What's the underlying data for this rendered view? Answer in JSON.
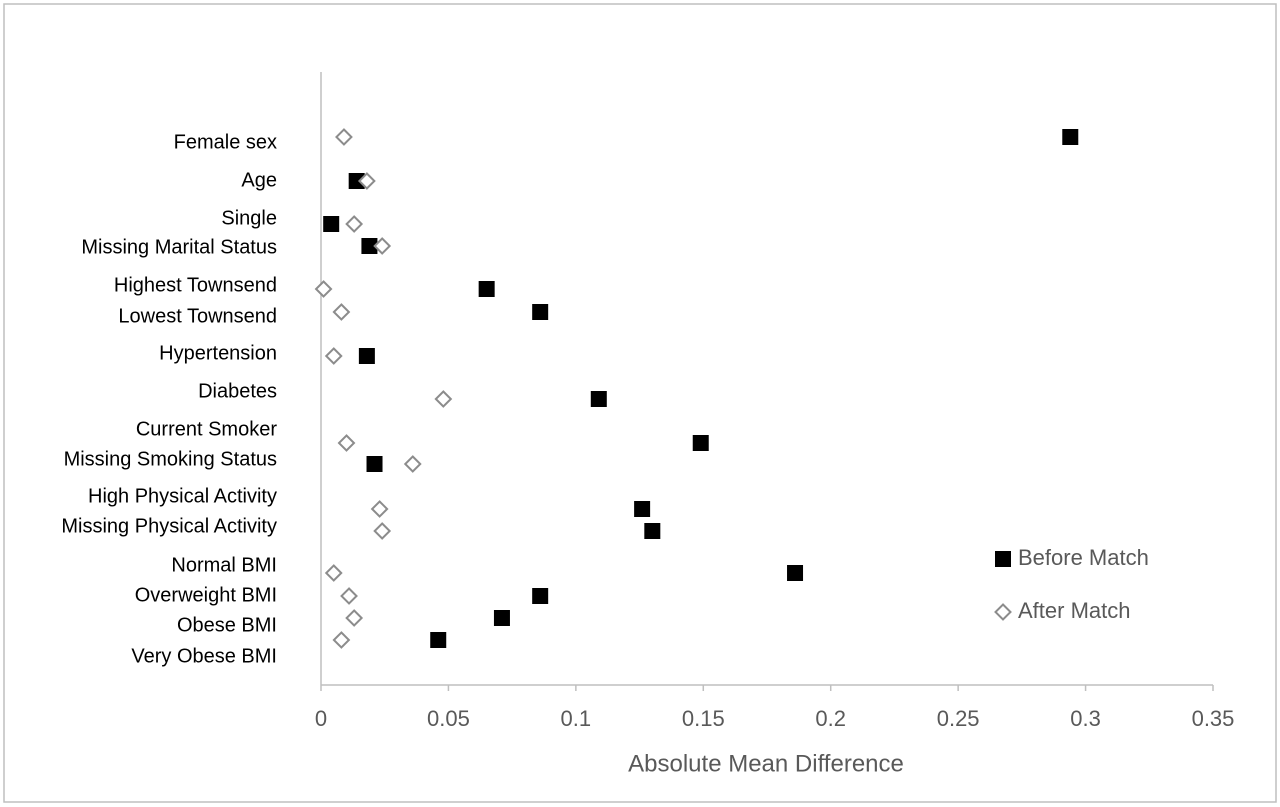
{
  "chart_data": {
    "type": "scatter",
    "x_label": "Absolute Mean Difference",
    "categories": [
      "Female sex",
      "Age",
      "Single",
      "Missing Marital Status",
      "Highest Townsend",
      "Lowest Townsend",
      "Hypertension",
      "Diabetes",
      "Current Smoker",
      "Missing Smoking Status",
      "High Physical Activity",
      "Missing Physical Activity",
      "Normal BMI",
      "Overweight BMI",
      "Obese BMI",
      "Very Obese BMI"
    ],
    "series": [
      {
        "name": "Before Match",
        "color": "#000000",
        "marker": "square",
        "values": [
          0.294,
          0.014,
          0.004,
          0.019,
          0.065,
          0.086,
          0.018,
          0.109,
          0.149,
          0.021,
          0.126,
          0.13,
          0.186,
          0.086,
          0.071,
          0.046
        ]
      },
      {
        "name": "After Match",
        "color": "#8c8c8c",
        "marker": "diamond",
        "values": [
          0.009,
          0.018,
          0.013,
          0.024,
          0.001,
          0.008,
          0.005,
          0.048,
          0.01,
          0.036,
          0.023,
          0.024,
          0.005,
          0.011,
          0.013,
          0.008
        ]
      }
    ],
    "xlim": [
      0,
      0.35
    ],
    "xticks": [
      0,
      0.05,
      0.1,
      0.15,
      0.2,
      0.25,
      0.3,
      0.35
    ],
    "grid": false
  }
}
